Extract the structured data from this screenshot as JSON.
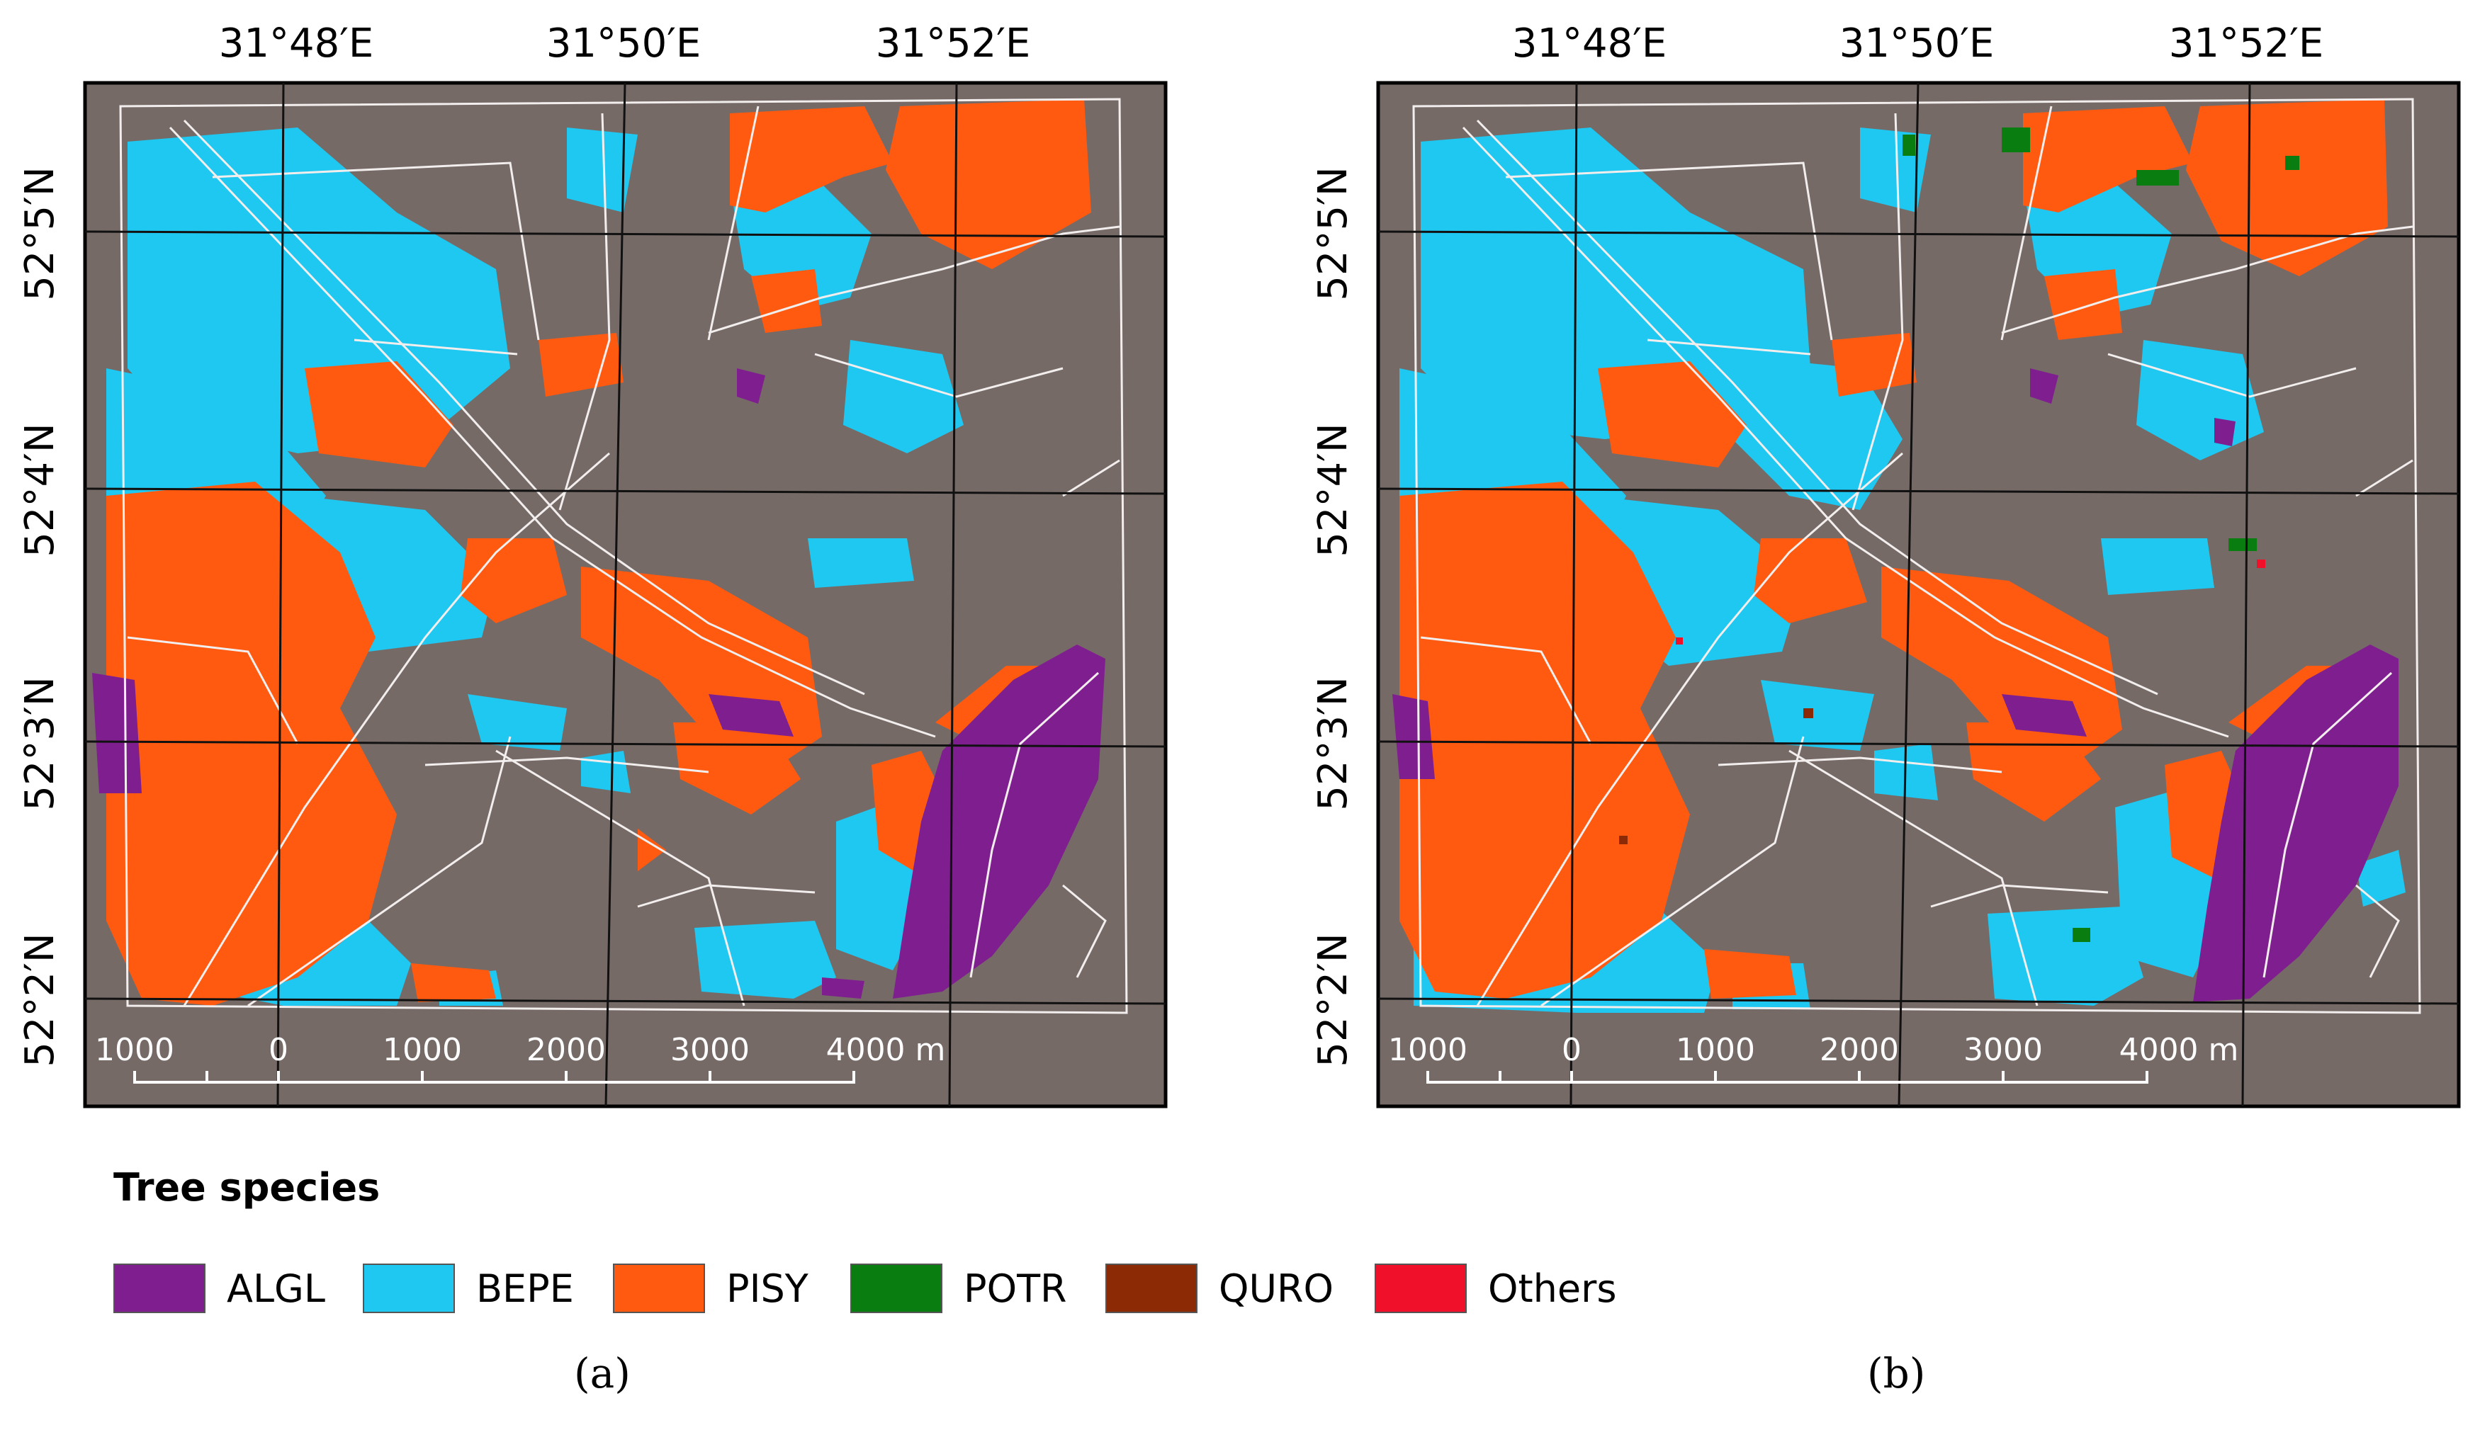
{
  "maps": [
    {
      "id": "a",
      "caption": "(a)",
      "lon_labels": [
        "31°48′E",
        "31°50′E",
        "31°52′E"
      ],
      "lat_labels": [
        "52°5′N",
        "52°4′N",
        "52°3′N",
        "52°2′N"
      ],
      "scale_labels": [
        "1000",
        "0",
        "1000",
        "2000",
        "3000",
        "4000 m"
      ]
    },
    {
      "id": "b",
      "caption": "(b)",
      "lon_labels": [
        "31°48′E",
        "31°50′E",
        "31°52′E"
      ],
      "lat_labels": [
        "52°5′N",
        "52°4′N",
        "52°3′N",
        "52°2′N"
      ],
      "scale_labels": [
        "1000",
        "0",
        "1000",
        "2000",
        "3000",
        "4000 m"
      ]
    }
  ],
  "legend": {
    "title": "Tree species",
    "items": [
      {
        "label": "ALGL",
        "color": "#7f1f8f"
      },
      {
        "label": "BEPE",
        "color": "#1ec8f0"
      },
      {
        "label": "PISY",
        "color": "#ff5a10"
      },
      {
        "label": "POTR",
        "color": "#0a7d10"
      },
      {
        "label": "QURO",
        "color": "#8b2a05"
      },
      {
        "label": "Others",
        "color": "#f0102a"
      }
    ]
  },
  "colors": {
    "background": "#766a67",
    "boundary": "#f2eeee",
    "grid": "#111111"
  }
}
